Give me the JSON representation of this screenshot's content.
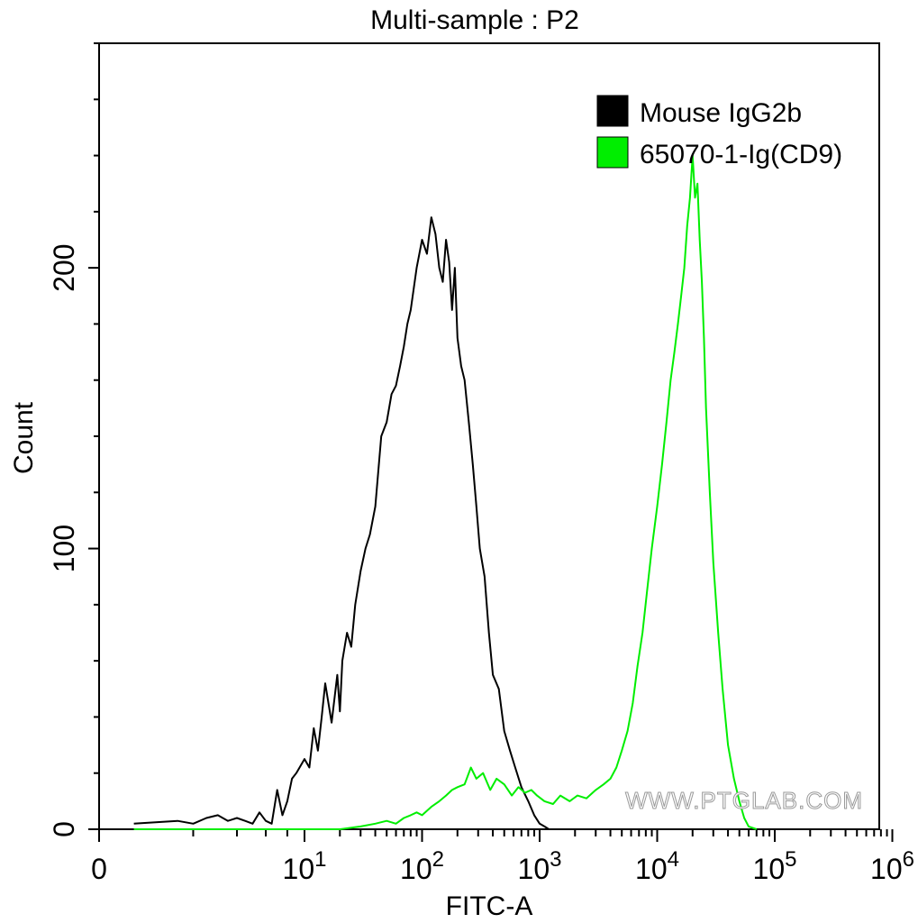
{
  "chart_data": {
    "type": "line",
    "title": "Multi-sample : P2",
    "xlabel": "FITC-A",
    "ylabel": "Count",
    "x_scale": "biexponential (linear near 0, log10 above)",
    "xlim": [
      0,
      1000000
    ],
    "ylim": [
      0,
      280
    ],
    "xticks": [
      {
        "value": 0,
        "base": "0",
        "exp": ""
      },
      {
        "value": 10,
        "base": "10",
        "exp": "1"
      },
      {
        "value": 100,
        "base": "10",
        "exp": "2"
      },
      {
        "value": 1000,
        "base": "10",
        "exp": "3"
      },
      {
        "value": 10000,
        "base": "10",
        "exp": "4"
      },
      {
        "value": 100000,
        "base": "10",
        "exp": "5"
      },
      {
        "value": 1000000,
        "base": "10",
        "exp": "6"
      }
    ],
    "yticks": [
      0,
      100,
      200
    ],
    "legend_position": "top-right",
    "grid": false,
    "series": [
      {
        "name": "Mouse IgG2b",
        "color": "#000000",
        "x": [
          0.5,
          1.5,
          2,
          2.5,
          3,
          3.5,
          4,
          4.5,
          5,
          5.5,
          6,
          6.5,
          7,
          7.5,
          8,
          8.5,
          9,
          10,
          11,
          12,
          13,
          14,
          15,
          17,
          19,
          20,
          21,
          23,
          25,
          27,
          30,
          33,
          36,
          40,
          45,
          50,
          55,
          60,
          65,
          70,
          75,
          80,
          90,
          100,
          110,
          120,
          130,
          140,
          150,
          160,
          170,
          180,
          190,
          200,
          215,
          230,
          250,
          270,
          290,
          310,
          340,
          370,
          400,
          450,
          500,
          560,
          620,
          700,
          800,
          900,
          1000,
          1100,
          1200,
          1300,
          1500
        ],
        "y": [
          2,
          3,
          2,
          4,
          5,
          3,
          4,
          3,
          2,
          6,
          3,
          2,
          14,
          5,
          10,
          18,
          20,
          25,
          22,
          36,
          28,
          40,
          52,
          38,
          55,
          42,
          60,
          70,
          65,
          80,
          92,
          100,
          105,
          115,
          140,
          145,
          155,
          158,
          165,
          172,
          180,
          185,
          200,
          210,
          205,
          218,
          212,
          200,
          195,
          210,
          202,
          185,
          200,
          175,
          165,
          160,
          145,
          130,
          115,
          100,
          90,
          70,
          55,
          50,
          35,
          28,
          22,
          15,
          10,
          5,
          2,
          1,
          0,
          0,
          0
        ]
      },
      {
        "name": "65070-1-Ig(CD9)",
        "color": "#00ee00",
        "x": [
          0.5,
          20,
          30,
          40,
          50,
          60,
          70,
          80,
          90,
          100,
          120,
          140,
          160,
          180,
          200,
          230,
          260,
          290,
          330,
          380,
          430,
          500,
          580,
          660,
          750,
          850,
          950,
          1100,
          1300,
          1500,
          1800,
          2100,
          2500,
          3000,
          3500,
          4000,
          4500,
          5000,
          5600,
          6200,
          6800,
          7500,
          8200,
          9000,
          10000,
          11000,
          12000,
          13000,
          14000,
          15000,
          16000,
          17000,
          18000,
          19000,
          20000,
          21000,
          22000,
          23000,
          24000,
          25000,
          26000,
          28000,
          30000,
          33000,
          36000,
          40000,
          45000,
          50000,
          55000,
          60000,
          70000
        ],
        "y": [
          0,
          0,
          1,
          2,
          3,
          2,
          4,
          5,
          6,
          5,
          8,
          10,
          12,
          14,
          15,
          16,
          22,
          18,
          20,
          14,
          18,
          16,
          12,
          15,
          13,
          14,
          12,
          10,
          9,
          12,
          10,
          12,
          11,
          14,
          16,
          18,
          22,
          28,
          35,
          45,
          58,
          70,
          85,
          100,
          115,
          130,
          145,
          160,
          170,
          180,
          190,
          200,
          215,
          225,
          240,
          225,
          230,
          210,
          195,
          175,
          150,
          120,
          95,
          70,
          50,
          30,
          18,
          10,
          4,
          1,
          0
        ]
      }
    ],
    "watermark": "WWW.PTGLAB.COM"
  }
}
